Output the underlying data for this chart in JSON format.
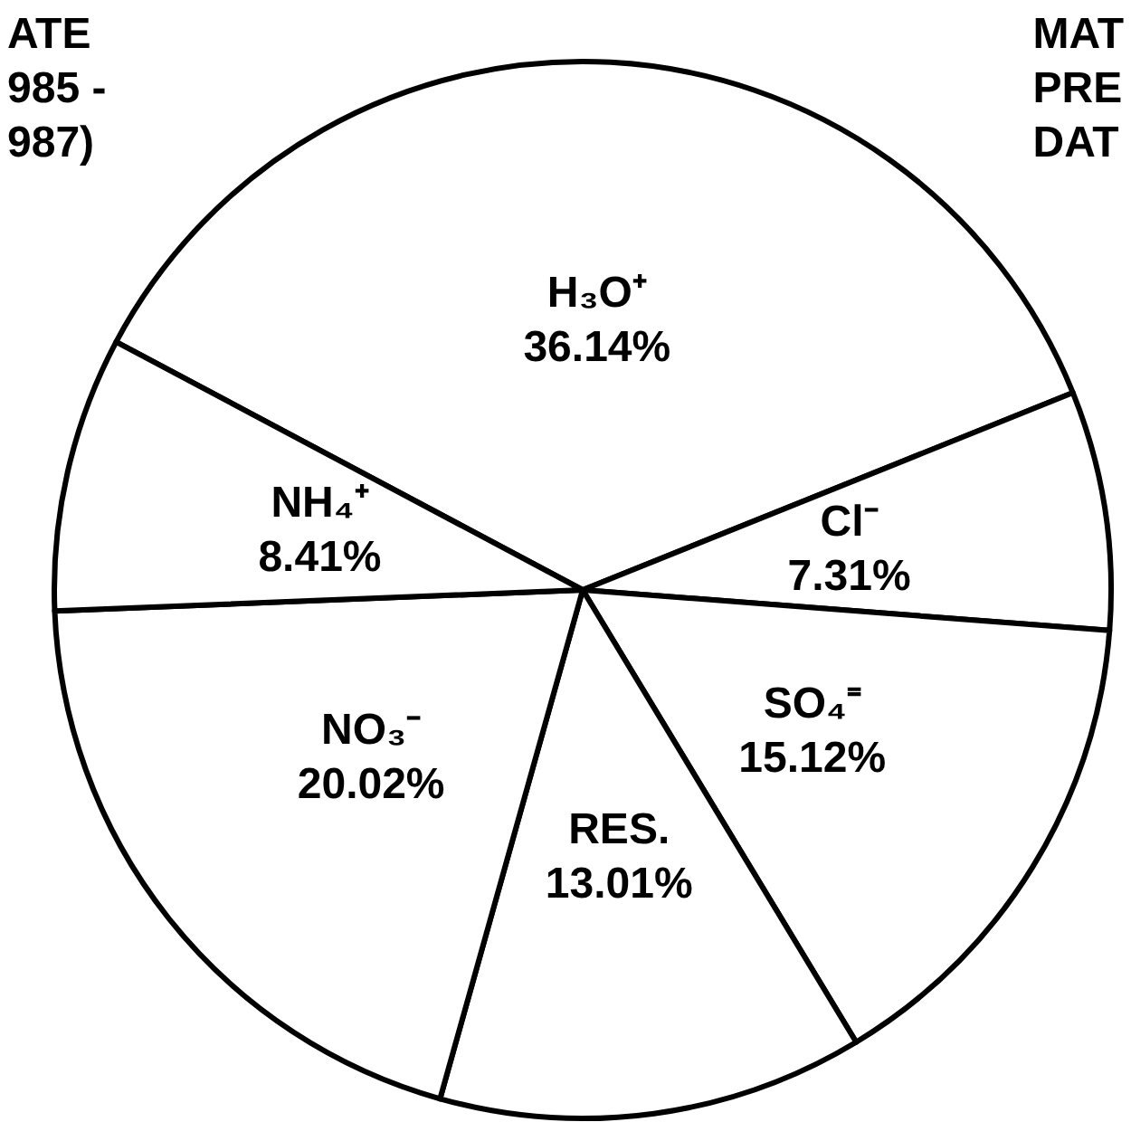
{
  "chart_data": {
    "type": "pie",
    "categories": [
      "H₃O⁺",
      "Cl⁻",
      "SO₄⁼",
      "RES.",
      "NO₃⁻",
      "NH₄⁺"
    ],
    "values": [
      36.14,
      7.31,
      15.12,
      13.01,
      20.02,
      8.41
    ],
    "colors": [
      "#ffffff",
      "#ffffff",
      "#ffffff",
      "#ffffff",
      "#ffffff",
      "#ffffff"
    ],
    "value_labels": [
      "36.14%",
      "7.31%",
      "15.12%",
      "13.01%",
      "20.02%",
      "8.41%"
    ],
    "annotations": [
      "ATE\n985 -\n987)",
      "MAT\nPRE\nDAT"
    ]
  }
}
